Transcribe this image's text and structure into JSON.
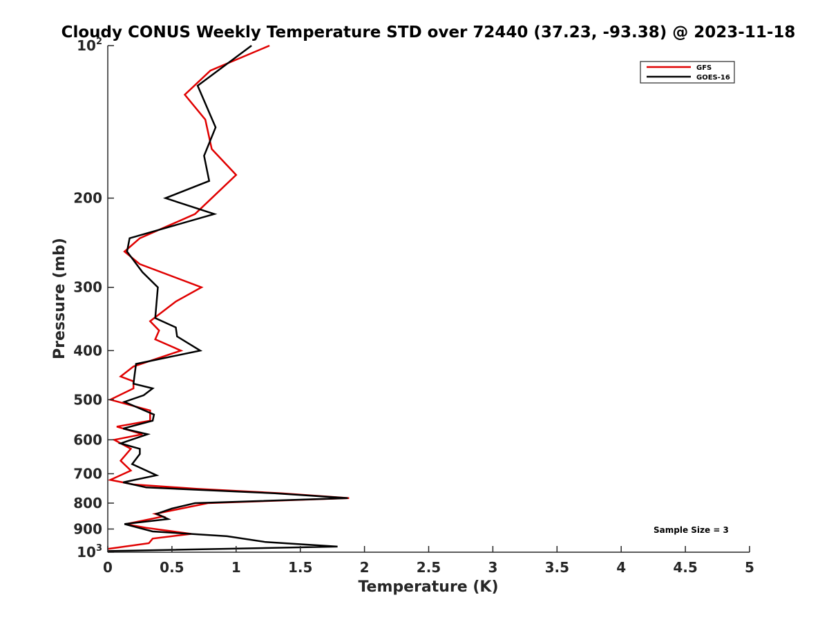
{
  "chart_data": {
    "type": "line",
    "title": "Cloudy CONUS Weekly Temperature STD over 72440 (37.23, -93.38) @ 2023-11-18",
    "xlabel": "Temperature (K)",
    "ylabel": "Pressure (mb)",
    "xlim": [
      0,
      5
    ],
    "ylim": [
      1000,
      100
    ],
    "y_scale": "log",
    "y_reversed": true,
    "x_ticks": [
      "0",
      "0.5",
      "1",
      "1.5",
      "2",
      "2.5",
      "3",
      "3.5",
      "4",
      "4.5",
      "5"
    ],
    "y_ticks": [
      {
        "value": 100,
        "label": "10",
        "sup": "2"
      },
      {
        "value": 200,
        "label": "200",
        "sup": ""
      },
      {
        "value": 300,
        "label": "300",
        "sup": ""
      },
      {
        "value": 400,
        "label": "400",
        "sup": ""
      },
      {
        "value": 500,
        "label": "500",
        "sup": ""
      },
      {
        "value": 600,
        "label": "600",
        "sup": ""
      },
      {
        "value": 700,
        "label": "700",
        "sup": ""
      },
      {
        "value": 800,
        "label": "800",
        "sup": ""
      },
      {
        "value": 900,
        "label": "900",
        "sup": ""
      },
      {
        "value": 1000,
        "label": "10",
        "sup": "3"
      }
    ],
    "grid": false,
    "legend_position": "top-right",
    "series": [
      {
        "name": "GFS",
        "color": "#e00000",
        "points": [
          [
            1.26,
            100
          ],
          [
            0.8,
            112
          ],
          [
            0.6,
            125
          ],
          [
            0.76,
            140
          ],
          [
            0.81,
            160
          ],
          [
            1.0,
            180
          ],
          [
            0.81,
            200
          ],
          [
            0.68,
            215
          ],
          [
            0.25,
            240
          ],
          [
            0.13,
            255
          ],
          [
            0.25,
            270
          ],
          [
            0.73,
            300
          ],
          [
            0.53,
            320
          ],
          [
            0.33,
            350
          ],
          [
            0.4,
            365
          ],
          [
            0.37,
            380
          ],
          [
            0.57,
            400
          ],
          [
            0.2,
            430
          ],
          [
            0.1,
            450
          ],
          [
            0.2,
            460
          ],
          [
            0.2,
            475
          ],
          [
            0.02,
            500
          ],
          [
            0.33,
            525
          ],
          [
            0.33,
            550
          ],
          [
            0.07,
            565
          ],
          [
            0.27,
            585
          ],
          [
            0.05,
            600
          ],
          [
            0.18,
            625
          ],
          [
            0.1,
            660
          ],
          [
            0.18,
            690
          ],
          [
            0.02,
            720
          ],
          [
            0.2,
            735
          ],
          [
            0.7,
            750
          ],
          [
            1.35,
            765
          ],
          [
            1.88,
            782
          ],
          [
            0.78,
            800
          ],
          [
            0.37,
            840
          ],
          [
            0.43,
            850
          ],
          [
            0.14,
            880
          ],
          [
            0.3,
            895
          ],
          [
            0.65,
            920
          ],
          [
            0.35,
            940
          ],
          [
            0.32,
            960
          ],
          [
            0.0,
            985
          ]
        ]
      },
      {
        "name": "GOES-16",
        "color": "#000000",
        "points": [
          [
            1.12,
            100
          ],
          [
            0.7,
            120
          ],
          [
            0.84,
            145
          ],
          [
            0.75,
            165
          ],
          [
            0.79,
            185
          ],
          [
            0.45,
            200
          ],
          [
            0.83,
            215
          ],
          [
            0.17,
            240
          ],
          [
            0.15,
            255
          ],
          [
            0.27,
            280
          ],
          [
            0.39,
            300
          ],
          [
            0.37,
            345
          ],
          [
            0.53,
            360
          ],
          [
            0.54,
            375
          ],
          [
            0.72,
            400
          ],
          [
            0.22,
            425
          ],
          [
            0.2,
            465
          ],
          [
            0.35,
            475
          ],
          [
            0.28,
            490
          ],
          [
            0.13,
            505
          ],
          [
            0.36,
            535
          ],
          [
            0.35,
            550
          ],
          [
            0.12,
            570
          ],
          [
            0.31,
            585
          ],
          [
            0.1,
            610
          ],
          [
            0.25,
            625
          ],
          [
            0.25,
            640
          ],
          [
            0.19,
            670
          ],
          [
            0.38,
            705
          ],
          [
            0.12,
            728
          ],
          [
            0.3,
            745
          ],
          [
            1.3,
            765
          ],
          [
            1.87,
            782
          ],
          [
            0.68,
            800
          ],
          [
            0.5,
            820
          ],
          [
            0.38,
            840
          ],
          [
            0.47,
            860
          ],
          [
            0.13,
            880
          ],
          [
            0.35,
            910
          ],
          [
            0.93,
            930
          ],
          [
            1.23,
            955
          ],
          [
            1.79,
            975
          ],
          [
            0.0,
            995
          ]
        ]
      }
    ],
    "annotation": "Sample Size = 3"
  }
}
